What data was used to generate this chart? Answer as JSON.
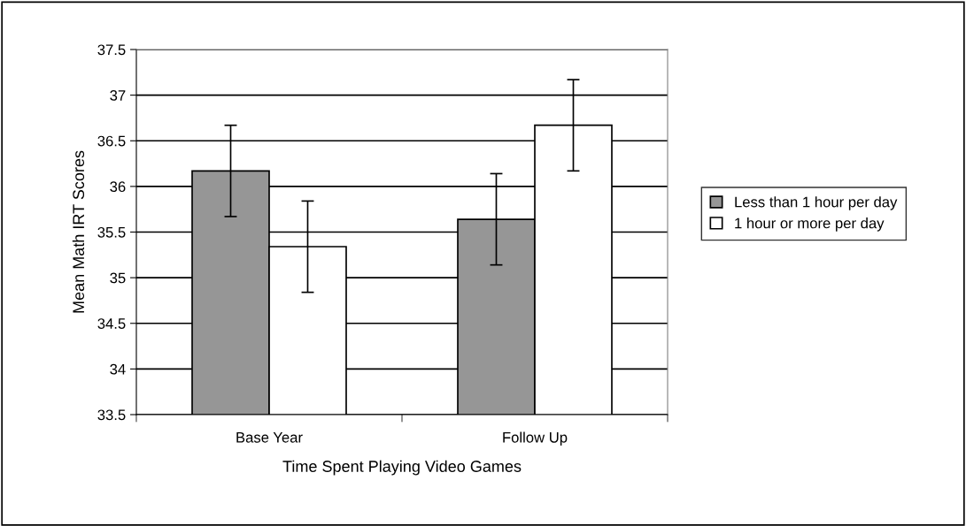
{
  "chart_data": {
    "type": "bar",
    "xlabel": "Time Spent Playing Video Games",
    "ylabel": "Mean Math IRT Scores",
    "categories": [
      "Base Year",
      "Follow Up"
    ],
    "series": [
      {
        "name": "Less than 1 hour per day",
        "color": "#969696",
        "values": [
          36.17,
          35.64
        ],
        "errors": [
          0.5,
          0.5
        ]
      },
      {
        "name": "1 hour or more per day",
        "color": "#ffffff",
        "values": [
          35.34,
          36.67
        ],
        "errors": [
          0.5,
          0.5
        ]
      }
    ],
    "ylim": [
      33.5,
      37.5
    ],
    "yticks": [
      33.5,
      34,
      34.5,
      35,
      35.5,
      36,
      36.5,
      37,
      37.5
    ],
    "grid": "y",
    "legend": "right"
  }
}
